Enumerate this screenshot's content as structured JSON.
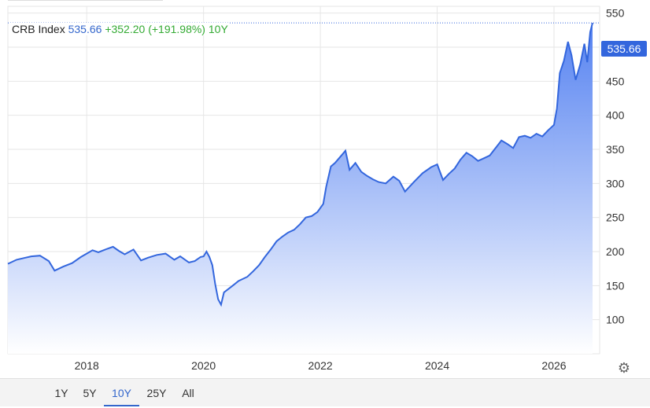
{
  "legend": {
    "name": "CRB Index",
    "value": "535.66",
    "change": "+352.20",
    "percent": "(+191.98%)",
    "period": "10Y"
  },
  "price_tag": "535.66",
  "settings_icon": "gear-icon",
  "ranges": [
    {
      "label": "1Y",
      "active": false
    },
    {
      "label": "5Y",
      "active": false
    },
    {
      "label": "10Y",
      "active": true
    },
    {
      "label": "25Y",
      "active": false
    },
    {
      "label": "All",
      "active": false
    }
  ],
  "colors": {
    "line": "#3366dd",
    "fill_top": "#4d7cf0",
    "fill_bottom": "#ffffff",
    "change_positive": "#33aa33"
  },
  "chart_data": {
    "type": "area",
    "title": "",
    "xlabel": "",
    "ylabel": "",
    "x_ticks": [
      "2018",
      "2020",
      "2022",
      "2024",
      "2026"
    ],
    "y_ticks": [
      100,
      150,
      200,
      250,
      300,
      350,
      400,
      450,
      500,
      550
    ],
    "ylim": [
      50,
      560
    ],
    "xlim": [
      2016.65,
      2026.66
    ],
    "grid": true,
    "last_value": 535.66,
    "series": [
      {
        "values": [
          [
            2016.65,
            182
          ],
          [
            2016.8,
            188
          ],
          [
            2016.95,
            191
          ],
          [
            2017.05,
            193
          ],
          [
            2017.2,
            194
          ],
          [
            2017.35,
            186
          ],
          [
            2017.45,
            172
          ],
          [
            2017.6,
            178
          ],
          [
            2017.75,
            183
          ],
          [
            2017.9,
            192
          ],
          [
            2018.0,
            197
          ],
          [
            2018.1,
            202
          ],
          [
            2018.2,
            199
          ],
          [
            2018.35,
            204
          ],
          [
            2018.45,
            207
          ],
          [
            2018.55,
            201
          ],
          [
            2018.65,
            196
          ],
          [
            2018.8,
            203
          ],
          [
            2018.93,
            187
          ],
          [
            2019.05,
            191
          ],
          [
            2019.2,
            195
          ],
          [
            2019.35,
            197
          ],
          [
            2019.5,
            188
          ],
          [
            2019.6,
            193
          ],
          [
            2019.75,
            184
          ],
          [
            2019.85,
            186
          ],
          [
            2019.95,
            192
          ],
          [
            2020.0,
            193
          ],
          [
            2020.05,
            200
          ],
          [
            2020.1,
            192
          ],
          [
            2020.15,
            180
          ],
          [
            2020.2,
            152
          ],
          [
            2020.25,
            130
          ],
          [
            2020.3,
            122
          ],
          [
            2020.35,
            140
          ],
          [
            2020.5,
            150
          ],
          [
            2020.6,
            157
          ],
          [
            2020.75,
            163
          ],
          [
            2020.85,
            171
          ],
          [
            2020.95,
            180
          ],
          [
            2021.05,
            192
          ],
          [
            2021.15,
            203
          ],
          [
            2021.25,
            215
          ],
          [
            2021.35,
            222
          ],
          [
            2021.45,
            228
          ],
          [
            2021.55,
            232
          ],
          [
            2021.65,
            240
          ],
          [
            2021.75,
            250
          ],
          [
            2021.85,
            252
          ],
          [
            2021.95,
            258
          ],
          [
            2022.05,
            270
          ],
          [
            2022.1,
            295
          ],
          [
            2022.18,
            325
          ],
          [
            2022.25,
            330
          ],
          [
            2022.35,
            340
          ],
          [
            2022.43,
            348
          ],
          [
            2022.5,
            320
          ],
          [
            2022.6,
            330
          ],
          [
            2022.7,
            317
          ],
          [
            2022.8,
            311
          ],
          [
            2022.9,
            306
          ],
          [
            2023.0,
            302
          ],
          [
            2023.12,
            300
          ],
          [
            2023.25,
            310
          ],
          [
            2023.35,
            304
          ],
          [
            2023.45,
            288
          ],
          [
            2023.6,
            302
          ],
          [
            2023.75,
            315
          ],
          [
            2023.9,
            324
          ],
          [
            2024.0,
            328
          ],
          [
            2024.1,
            305
          ],
          [
            2024.2,
            314
          ],
          [
            2024.3,
            322
          ],
          [
            2024.4,
            335
          ],
          [
            2024.5,
            345
          ],
          [
            2024.6,
            340
          ],
          [
            2024.7,
            333
          ],
          [
            2024.8,
            337
          ],
          [
            2024.9,
            341
          ],
          [
            2025.0,
            352
          ],
          [
            2025.1,
            363
          ],
          [
            2025.2,
            358
          ],
          [
            2025.3,
            352
          ],
          [
            2025.4,
            368
          ],
          [
            2025.5,
            370
          ],
          [
            2025.6,
            367
          ],
          [
            2025.7,
            373
          ],
          [
            2025.8,
            369
          ],
          [
            2025.9,
            378
          ],
          [
            2026.0,
            386
          ],
          [
            2026.05,
            410
          ],
          [
            2026.1,
            462
          ],
          [
            2026.17,
            480
          ],
          [
            2026.24,
            508
          ],
          [
            2026.3,
            488
          ],
          [
            2026.37,
            452
          ],
          [
            2026.45,
            475
          ],
          [
            2026.52,
            505
          ],
          [
            2026.57,
            478
          ],
          [
            2026.62,
            522
          ],
          [
            2026.66,
            535.66
          ]
        ]
      }
    ]
  }
}
